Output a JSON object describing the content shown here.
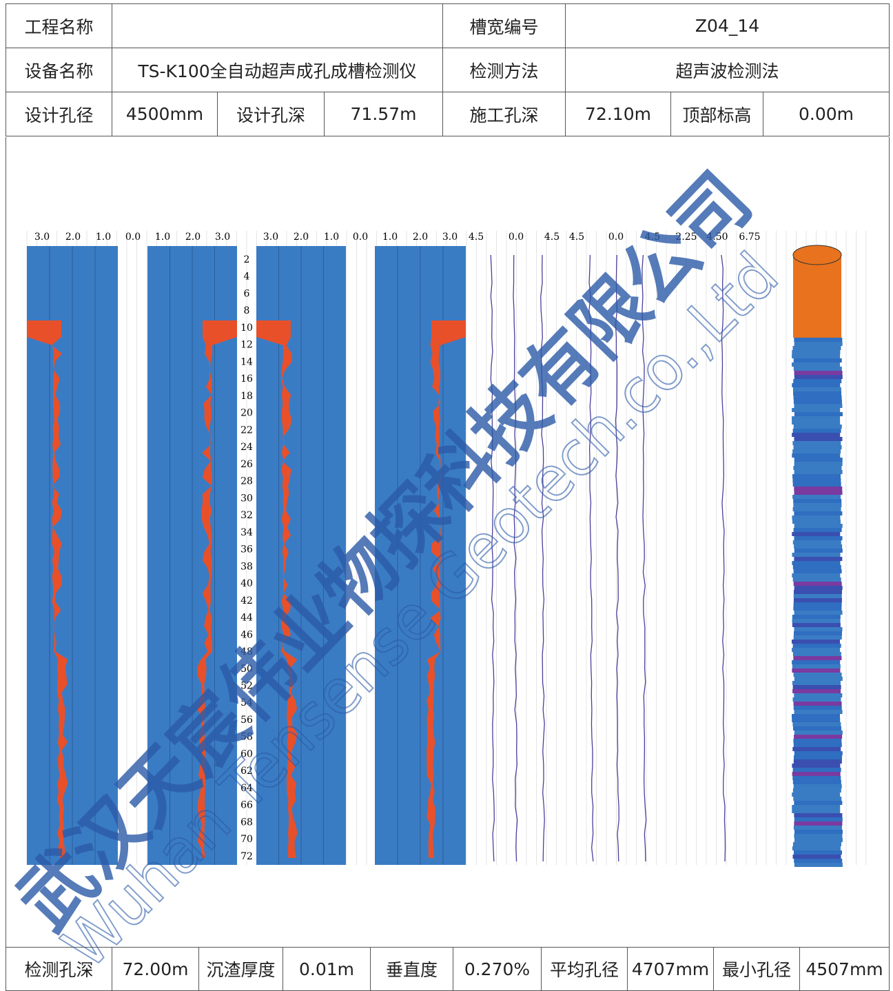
{
  "header": {
    "rows": [
      [
        "工程名称",
        "槽宽编号",
        "Z04_14"
      ],
      [
        "设备名称",
        "TS-K100全自动超声成孔成槽检测仪",
        "检测方法",
        "超声波检测法"
      ],
      [
        "设计孔径",
        "4500mm",
        "设计孔深",
        "71.57m",
        "施工孔深",
        "72.10m",
        "顶部标高",
        "0.00m"
      ]
    ]
  },
  "figure": {
    "scale_labels": [
      "3.0",
      "2.0",
      "1.0",
      "0.0",
      "1.0",
      "2.0",
      "3.0",
      "3.0",
      "2.0",
      "1.0",
      "0.0",
      "1.0",
      "2.0",
      "3.0",
      "4.5",
      "0.0",
      "4.5",
      "4.5",
      "0.0",
      "4.5",
      "2.25",
      "4.50",
      "6.75"
    ],
    "depth_labels": [
      2,
      4,
      6,
      8,
      10,
      12,
      14,
      16,
      18,
      20,
      22,
      24,
      26,
      28,
      30,
      32,
      34,
      36,
      38,
      40,
      42,
      44,
      46,
      48,
      50,
      52,
      54,
      56,
      58,
      60,
      62,
      64,
      66,
      68,
      70,
      72
    ]
  },
  "footer": {
    "cells": [
      "检测孔深",
      "72.00m",
      "沉渣厚度",
      "0.01m",
      "垂直度",
      "0.270%",
      "平均孔径",
      "4707mm",
      "最小孔径",
      "4507mm"
    ]
  },
  "watermark": {
    "cn": "武汉天宸伟业物探科技有限公司",
    "en": "Wuhan Tensense Geotech.co.,Ltd"
  }
}
